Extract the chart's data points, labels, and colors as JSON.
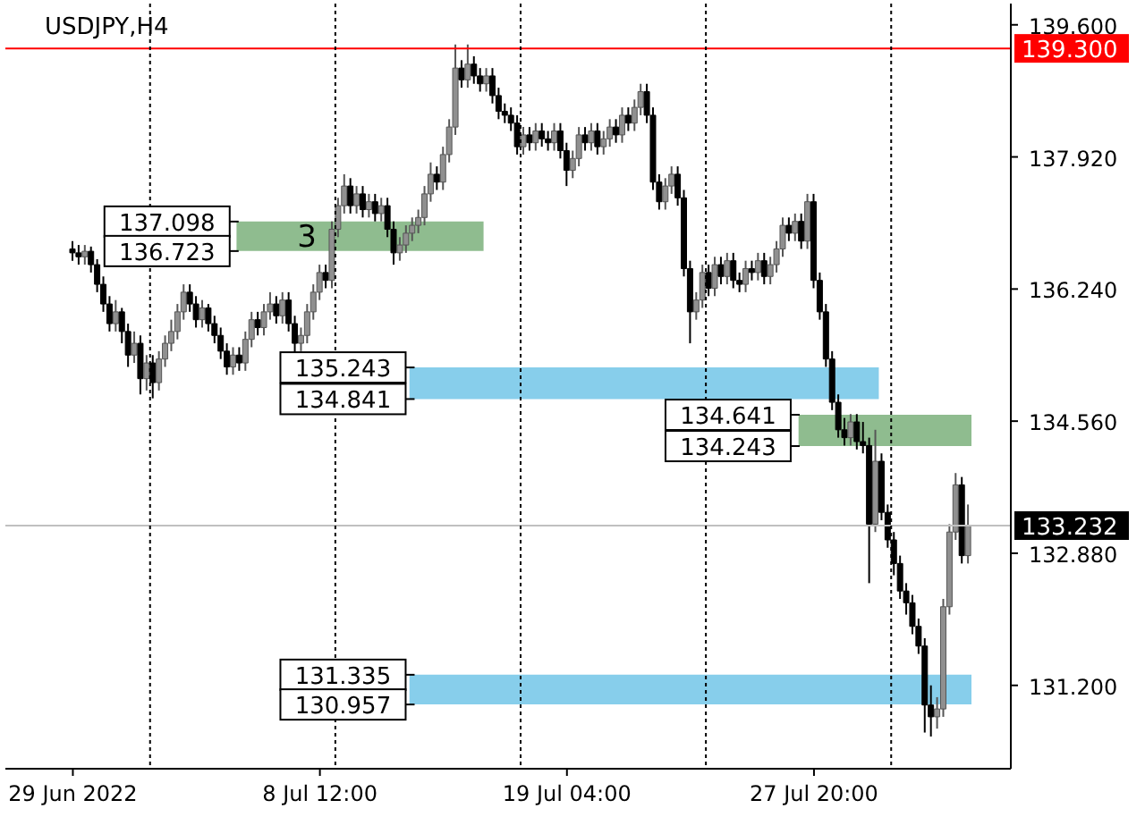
{
  "chart_data": {
    "type": "candlestick",
    "title": "USDJPY,H4",
    "categories": [
      "29 Jun 2022",
      null,
      null,
      null,
      null,
      null,
      null,
      null,
      null,
      null,
      null,
      null,
      null,
      null,
      null,
      null,
      null,
      null,
      null,
      null,
      null,
      null,
      null,
      null,
      null,
      null,
      null,
      null,
      null,
      null,
      null,
      null,
      null,
      null,
      null,
      null,
      null,
      null,
      null,
      null,
      "8 Jul 12:00",
      null,
      null,
      null,
      null,
      null,
      null,
      null,
      null,
      null,
      null,
      null,
      null,
      null,
      null,
      null,
      null,
      null,
      null,
      null,
      null,
      null,
      null,
      null,
      null,
      null,
      null,
      null,
      null,
      null,
      null,
      null,
      null,
      null,
      null,
      null,
      null,
      null,
      null,
      null,
      "19 Jul 04:00",
      null,
      null,
      null,
      null,
      null,
      null,
      null,
      null,
      null,
      null,
      null,
      null,
      null,
      null,
      null,
      null,
      null,
      null,
      null,
      null,
      null,
      null,
      null,
      null,
      null,
      null,
      null,
      null,
      null,
      null,
      null,
      null,
      null,
      null,
      null,
      null,
      null,
      null,
      null,
      "27 Jul 20:00",
      null,
      null,
      null,
      null,
      null,
      null,
      null,
      null,
      null,
      null,
      null,
      null,
      null,
      null,
      null,
      null,
      null,
      null,
      null,
      null,
      null,
      null,
      null,
      null,
      null
    ],
    "ohlc": [
      [
        136.75,
        136.85,
        136.6,
        136.7
      ],
      [
        136.7,
        136.8,
        136.55,
        136.65
      ],
      [
        136.65,
        136.8,
        136.55,
        136.72
      ],
      [
        136.72,
        136.78,
        136.45,
        136.55
      ],
      [
        136.55,
        136.62,
        136.2,
        136.3
      ],
      [
        136.3,
        136.4,
        135.95,
        136.05
      ],
      [
        136.05,
        136.15,
        135.7,
        135.8
      ],
      [
        135.8,
        136.1,
        135.7,
        135.95
      ],
      [
        135.95,
        136.0,
        135.55,
        135.7
      ],
      [
        135.7,
        135.8,
        135.25,
        135.4
      ],
      [
        135.4,
        135.7,
        135.3,
        135.55
      ],
      [
        135.55,
        135.65,
        134.9,
        135.1
      ],
      [
        135.1,
        135.4,
        134.95,
        135.3
      ],
      [
        135.3,
        135.4,
        134.85,
        135.05
      ],
      [
        135.05,
        135.45,
        134.95,
        135.35
      ],
      [
        135.35,
        135.65,
        135.25,
        135.55
      ],
      [
        135.55,
        135.85,
        135.45,
        135.7
      ],
      [
        135.7,
        136.05,
        135.6,
        135.95
      ],
      [
        135.95,
        136.3,
        135.85,
        136.2
      ],
      [
        136.2,
        136.3,
        135.95,
        136.05
      ],
      [
        136.05,
        136.15,
        135.75,
        135.85
      ],
      [
        135.85,
        136.1,
        135.75,
        136.0
      ],
      [
        136.0,
        136.05,
        135.7,
        135.8
      ],
      [
        135.8,
        135.9,
        135.55,
        135.65
      ],
      [
        135.65,
        135.75,
        135.35,
        135.45
      ],
      [
        135.45,
        135.55,
        135.15,
        135.25
      ],
      [
        135.25,
        135.5,
        135.15,
        135.4
      ],
      [
        135.4,
        135.5,
        135.2,
        135.3
      ],
      [
        135.3,
        135.7,
        135.2,
        135.6
      ],
      [
        135.6,
        135.95,
        135.5,
        135.85
      ],
      [
        135.85,
        135.95,
        135.65,
        135.75
      ],
      [
        135.75,
        136.05,
        135.65,
        135.95
      ],
      [
        135.95,
        136.2,
        135.85,
        136.05
      ],
      [
        136.05,
        136.15,
        135.8,
        135.9
      ],
      [
        135.9,
        136.2,
        135.8,
        136.1
      ],
      [
        136.1,
        136.2,
        135.7,
        135.8
      ],
      [
        135.8,
        135.9,
        135.4,
        135.55
      ],
      [
        135.55,
        135.75,
        135.45,
        135.65
      ],
      [
        135.65,
        136.05,
        135.55,
        135.95
      ],
      [
        135.95,
        136.3,
        135.85,
        136.2
      ],
      [
        136.2,
        136.55,
        136.1,
        136.45
      ],
      [
        136.45,
        136.55,
        136.25,
        136.35
      ],
      [
        136.35,
        137.1,
        136.25,
        137.0
      ],
      [
        137.0,
        137.4,
        136.9,
        137.3
      ],
      [
        137.3,
        137.7,
        137.2,
        137.55
      ],
      [
        137.55,
        137.65,
        137.2,
        137.3
      ],
      [
        137.3,
        137.55,
        137.2,
        137.45
      ],
      [
        137.45,
        137.55,
        137.15,
        137.25
      ],
      [
        137.25,
        137.45,
        137.15,
        137.35
      ],
      [
        137.35,
        137.45,
        137.1,
        137.2
      ],
      [
        137.2,
        137.4,
        137.1,
        137.3
      ],
      [
        137.3,
        137.4,
        136.9,
        137.0
      ],
      [
        137.0,
        137.1,
        136.55,
        136.7
      ],
      [
        136.7,
        136.9,
        136.6,
        136.8
      ],
      [
        136.8,
        137.05,
        136.7,
        136.95
      ],
      [
        136.95,
        137.15,
        136.85,
        137.05
      ],
      [
        137.05,
        137.25,
        136.95,
        137.15
      ],
      [
        137.15,
        137.55,
        137.05,
        137.45
      ],
      [
        137.45,
        137.85,
        137.35,
        137.7
      ],
      [
        137.7,
        137.8,
        137.5,
        137.6
      ],
      [
        137.6,
        138.05,
        137.5,
        137.95
      ],
      [
        137.95,
        138.4,
        137.85,
        138.3
      ],
      [
        138.3,
        139.35,
        138.2,
        139.05
      ],
      [
        139.05,
        139.15,
        138.8,
        138.9
      ],
      [
        138.9,
        139.35,
        138.8,
        139.1
      ],
      [
        139.1,
        139.2,
        138.85,
        138.95
      ],
      [
        138.95,
        139.05,
        138.75,
        138.85
      ],
      [
        138.85,
        139.05,
        138.75,
        138.95
      ],
      [
        138.95,
        139.05,
        138.6,
        138.7
      ],
      [
        138.7,
        138.8,
        138.4,
        138.5
      ],
      [
        138.5,
        138.6,
        138.35,
        138.45
      ],
      [
        138.45,
        138.55,
        138.25,
        138.35
      ],
      [
        138.35,
        138.45,
        137.95,
        138.05
      ],
      [
        138.05,
        138.3,
        137.95,
        138.2
      ],
      [
        138.2,
        138.3,
        138.0,
        138.1
      ],
      [
        138.1,
        138.35,
        138.0,
        138.25
      ],
      [
        138.25,
        138.35,
        138.05,
        138.15
      ],
      [
        138.15,
        138.25,
        138.0,
        138.1
      ],
      [
        138.1,
        138.35,
        138.0,
        138.25
      ],
      [
        138.25,
        138.35,
        137.9,
        138.0
      ],
      [
        138.0,
        138.1,
        137.55,
        137.75
      ],
      [
        137.75,
        138.0,
        137.65,
        137.9
      ],
      [
        137.9,
        138.3,
        137.8,
        138.2
      ],
      [
        138.2,
        138.3,
        138.0,
        138.1
      ],
      [
        138.1,
        138.35,
        138.0,
        138.25
      ],
      [
        138.25,
        138.35,
        137.95,
        138.05
      ],
      [
        138.05,
        138.25,
        137.95,
        138.15
      ],
      [
        138.15,
        138.4,
        138.05,
        138.3
      ],
      [
        138.3,
        138.4,
        138.1,
        138.2
      ],
      [
        138.2,
        138.55,
        138.1,
        138.45
      ],
      [
        138.45,
        138.55,
        138.25,
        138.35
      ],
      [
        138.35,
        138.65,
        138.25,
        138.55
      ],
      [
        138.55,
        138.85,
        138.45,
        138.75
      ],
      [
        138.75,
        138.85,
        138.35,
        138.45
      ],
      [
        138.45,
        138.55,
        137.5,
        137.6
      ],
      [
        137.6,
        137.7,
        137.25,
        137.35
      ],
      [
        137.35,
        137.65,
        137.25,
        137.55
      ],
      [
        137.55,
        137.8,
        137.45,
        137.7
      ],
      [
        137.7,
        137.8,
        137.3,
        137.4
      ],
      [
        137.4,
        137.5,
        136.4,
        136.5
      ],
      [
        136.5,
        136.6,
        135.55,
        135.95
      ],
      [
        135.95,
        136.2,
        135.85,
        136.1
      ],
      [
        136.1,
        136.55,
        136.0,
        136.45
      ],
      [
        136.45,
        136.55,
        136.15,
        136.25
      ],
      [
        136.25,
        136.65,
        136.15,
        136.55
      ],
      [
        136.55,
        136.65,
        136.3,
        136.4
      ],
      [
        136.4,
        136.7,
        136.3,
        136.6
      ],
      [
        136.6,
        136.7,
        136.25,
        136.35
      ],
      [
        136.35,
        136.45,
        136.2,
        136.3
      ],
      [
        136.3,
        136.6,
        136.2,
        136.5
      ],
      [
        136.5,
        136.6,
        136.35,
        136.45
      ],
      [
        136.45,
        136.7,
        136.35,
        136.6
      ],
      [
        136.6,
        136.7,
        136.3,
        136.4
      ],
      [
        136.4,
        136.65,
        136.3,
        136.55
      ],
      [
        136.55,
        136.85,
        136.45,
        136.75
      ],
      [
        136.75,
        137.15,
        136.65,
        137.05
      ],
      [
        137.05,
        137.15,
        136.85,
        136.95
      ],
      [
        136.95,
        137.2,
        136.85,
        137.1
      ],
      [
        137.1,
        137.2,
        136.75,
        136.85
      ],
      [
        136.85,
        137.45,
        136.75,
        137.35
      ],
      [
        137.35,
        137.45,
        136.25,
        136.35
      ],
      [
        136.35,
        136.45,
        135.85,
        135.95
      ],
      [
        135.95,
        136.05,
        135.25,
        135.35
      ],
      [
        135.35,
        135.45,
        134.7,
        134.8
      ],
      [
        134.8,
        134.9,
        134.35,
        134.45
      ],
      [
        134.45,
        134.6,
        134.25,
        134.35
      ],
      [
        134.35,
        134.65,
        134.25,
        134.55
      ],
      [
        134.55,
        134.65,
        134.2,
        134.3
      ],
      [
        134.3,
        134.55,
        134.15,
        134.25
      ],
      [
        134.25,
        134.35,
        132.5,
        133.25
      ],
      [
        133.25,
        134.45,
        133.15,
        134.05
      ],
      [
        134.05,
        134.15,
        133.3,
        133.4
      ],
      [
        133.4,
        133.5,
        132.95,
        133.05
      ],
      [
        133.05,
        133.15,
        132.6,
        132.75
      ],
      [
        132.75,
        132.85,
        132.3,
        132.4
      ],
      [
        132.4,
        132.5,
        132.1,
        132.25
      ],
      [
        132.25,
        132.35,
        131.85,
        131.95
      ],
      [
        131.95,
        132.05,
        131.6,
        131.7
      ],
      [
        131.7,
        131.8,
        130.6,
        130.95
      ],
      [
        130.95,
        131.2,
        130.55,
        130.8
      ],
      [
        130.8,
        131.05,
        130.65,
        130.9
      ],
      [
        130.9,
        132.3,
        130.8,
        132.2
      ],
      [
        132.2,
        133.25,
        132.1,
        133.15
      ],
      [
        133.15,
        133.9,
        133.05,
        133.75
      ],
      [
        133.75,
        133.85,
        132.75,
        132.85
      ],
      [
        132.85,
        133.5,
        132.75,
        133.232
      ]
    ],
    "ylim": [
      130.14,
      139.87
    ],
    "yticks": [
      {
        "value": 131.2,
        "label": "131.200"
      },
      {
        "value": 132.88,
        "label": "132.880"
      },
      {
        "value": 134.56,
        "label": "134.560"
      },
      {
        "value": 136.24,
        "label": "136.240"
      },
      {
        "value": 137.92,
        "label": "137.920"
      },
      {
        "value": 139.6,
        "label": "139.600"
      }
    ],
    "ref_lines": [
      {
        "axis": "y",
        "value": 139.3,
        "label": "139.300",
        "color": "#ff0000",
        "line_style": "solid"
      },
      {
        "axis": "y",
        "value": 133.232,
        "label": "133.232",
        "color": "#c0c0c0",
        "line_style": "solid"
      }
    ],
    "bands": [
      {
        "axis": "y",
        "from": 136.723,
        "to": 137.098,
        "color": "#8fbc8f"
      },
      {
        "axis": "y",
        "from": 134.841,
        "to": 135.243,
        "color": "#87ceeb"
      },
      {
        "axis": "y",
        "from": 134.243,
        "to": 134.641,
        "color": "#8fbc8f"
      },
      {
        "axis": "y",
        "from": 130.957,
        "to": 131.335,
        "color": "#87ceeb"
      }
    ],
    "annotations": [
      "3",
      "137.098",
      "136.723",
      "135.243",
      "134.841",
      "134.641",
      "134.243",
      "131.335",
      "130.957"
    ],
    "grid": false,
    "legend": false
  }
}
